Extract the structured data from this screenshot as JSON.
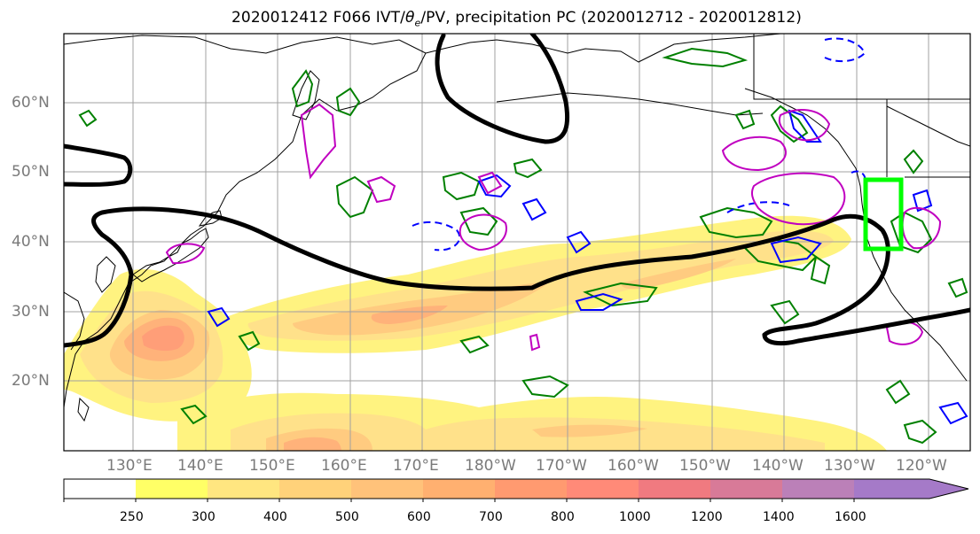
{
  "title": "2020012412 F066 IVT/",
  "title_theta": "θ",
  "title_theta_sub": "e",
  "title_rest": "/PV, precipitation PC (2020012712 - 2020012812)",
  "lat_labels": [
    "60°N",
    "50°N",
    "40°N",
    "30°N",
    "20°N"
  ],
  "lon_labels": [
    "130°E",
    "140°E",
    "150°E",
    "160°E",
    "170°E",
    "180°W",
    "170°W",
    "160°W",
    "150°W",
    "140°W",
    "130°W",
    "120°W"
  ],
  "colorbar": {
    "levels": [
      "250",
      "300",
      "400",
      "500",
      "600",
      "700",
      "800",
      "1000",
      "1200",
      "1400",
      "1600"
    ],
    "colors": [
      "#ffffff",
      "#ffff66",
      "#ffe680",
      "#ffd27a",
      "#ffc27a",
      "#ffb070",
      "#ff9a70",
      "#ff8a78",
      "#f07a80",
      "#d87a98",
      "#bb80b8",
      "#a57ac8"
    ]
  },
  "colors": {
    "ivt_fill": "#ffe680",
    "contour_pv": "#000000",
    "contour_green": "#008000",
    "contour_blue": "#0000ff",
    "contour_magenta": "#c000c0",
    "highlight_box": "#00ff00"
  }
}
